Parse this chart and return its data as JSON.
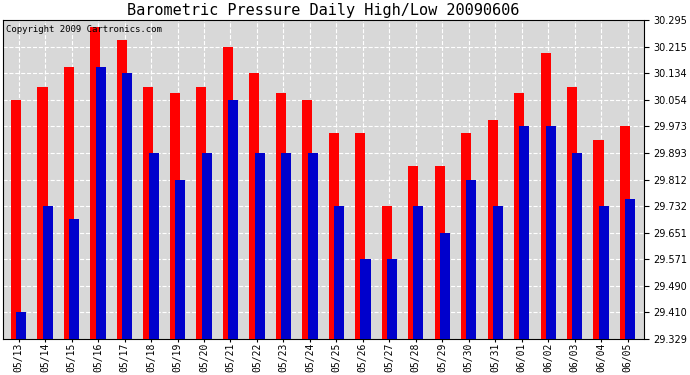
{
  "title": "Barometric Pressure Daily High/Low 20090606",
  "copyright": "Copyright 2009 Cartronics.com",
  "dates": [
    "05/13",
    "05/14",
    "05/15",
    "05/16",
    "05/17",
    "05/18",
    "05/19",
    "05/20",
    "05/21",
    "05/22",
    "05/23",
    "05/24",
    "05/25",
    "05/26",
    "05/27",
    "05/28",
    "05/29",
    "05/30",
    "05/31",
    "06/01",
    "06/02",
    "06/03",
    "06/04",
    "06/05"
  ],
  "highs": [
    30.054,
    30.094,
    30.154,
    30.275,
    30.235,
    30.094,
    30.074,
    30.094,
    30.215,
    30.134,
    30.074,
    30.054,
    29.953,
    29.953,
    29.732,
    29.852,
    29.852,
    29.953,
    29.993,
    30.074,
    30.195,
    30.094,
    29.933,
    29.973
  ],
  "lows": [
    29.41,
    29.732,
    29.692,
    30.154,
    30.134,
    29.893,
    29.812,
    29.893,
    30.054,
    29.893,
    29.893,
    29.893,
    29.732,
    29.571,
    29.571,
    29.732,
    29.651,
    29.812,
    29.732,
    29.973,
    29.973,
    29.893,
    29.732,
    29.752
  ],
  "ymin": 29.329,
  "ymax": 30.295,
  "yticks": [
    29.329,
    29.41,
    29.49,
    29.571,
    29.651,
    29.732,
    29.812,
    29.893,
    29.973,
    30.054,
    30.134,
    30.215,
    30.295
  ],
  "bar_color_high": "#ff0000",
  "bar_color_low": "#0000cc",
  "background_color": "#ffffff",
  "plot_bg_color": "#d8d8d8",
  "grid_color": "#ffffff",
  "title_fontsize": 11,
  "copyright_fontsize": 6.5
}
